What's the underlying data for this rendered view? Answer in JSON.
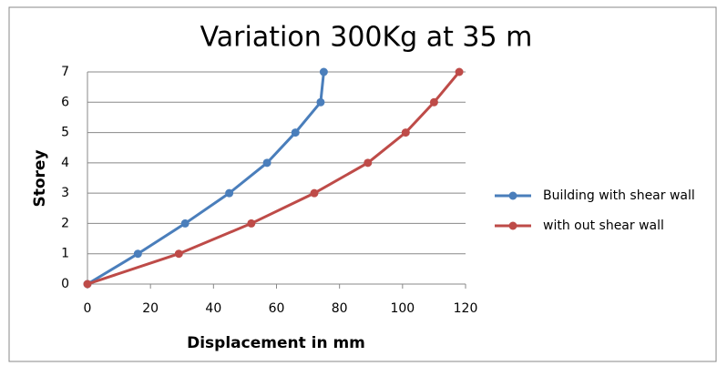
{
  "chart_data": {
    "type": "line",
    "title": "Variation 300Kg at 35 m",
    "xlabel": "Displacement in mm",
    "ylabel": "Storey",
    "xlim": [
      0,
      120
    ],
    "xticks": [
      0,
      20,
      40,
      60,
      80,
      100,
      120
    ],
    "ylim": [
      0,
      7
    ],
    "yticks": [
      0,
      1,
      2,
      3,
      4,
      5,
      6,
      7
    ],
    "grid": true,
    "legend": "right",
    "series": [
      {
        "name": "Building with shear wall",
        "color": "#4a7ebb",
        "x": [
          0,
          16,
          31,
          45,
          57,
          66,
          74,
          75
        ],
        "values": [
          0,
          1,
          2,
          3,
          4,
          5,
          6,
          7
        ]
      },
      {
        "name": "with out shear wall",
        "color": "#be4b48",
        "x": [
          0,
          29,
          52,
          72,
          89,
          101,
          110,
          118
        ],
        "values": [
          0,
          1,
          2,
          3,
          4,
          5,
          6,
          7
        ]
      }
    ]
  }
}
